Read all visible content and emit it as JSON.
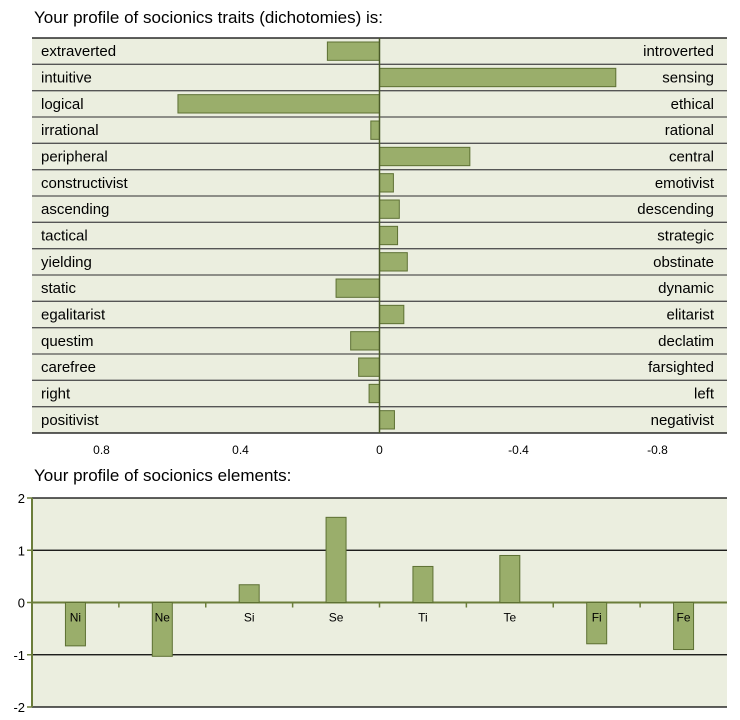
{
  "chart_data": [
    {
      "type": "bar",
      "orientation": "horizontal-diverging",
      "title": "Your profile of socionics traits (dichotomies) is:",
      "left_labels": [
        "extraverted",
        "intuitive",
        "logical",
        "irrational",
        "peripheral",
        "constructivist",
        "ascending",
        "tactical",
        "yielding",
        "static",
        "egalitarist",
        "questim",
        "carefree",
        "right",
        "positivist"
      ],
      "right_labels": [
        "introverted",
        "sensing",
        "ethical",
        "rational",
        "central",
        "emotivist",
        "descending",
        "strategic",
        "obstinate",
        "dynamic",
        "elitarist",
        "declatim",
        "farsighted",
        "left",
        "negativist"
      ],
      "values": [
        0.15,
        -0.68,
        0.58,
        0.025,
        -0.26,
        -0.04,
        -0.057,
        -0.052,
        -0.08,
        0.125,
        -0.07,
        0.083,
        0.06,
        0.03,
        -0.043
      ],
      "xlim": [
        1,
        -1
      ],
      "xticks": [
        0.8,
        0.4,
        0,
        -0.4,
        -0.8
      ],
      "xtick_labels": [
        "0.8",
        "0.4",
        "0",
        "-0.4",
        "-0.8"
      ]
    },
    {
      "type": "bar",
      "title": "Your profile of socionics elements:",
      "categories": [
        "Ni",
        "Ne",
        "Si",
        "Se",
        "Ti",
        "Te",
        "Fi",
        "Fe"
      ],
      "values": [
        -0.83,
        -1.03,
        0.34,
        1.63,
        0.69,
        0.9,
        -0.79,
        -0.9
      ],
      "ylim": [
        -2,
        2
      ],
      "yticks": [
        2,
        1,
        0,
        -1,
        -2
      ],
      "ytick_labels": [
        "2",
        "1",
        "0",
        "-1",
        "-2"
      ]
    }
  ],
  "colors": {
    "bar": "#9aae6b",
    "bar_border": "#5d7033",
    "plot_bg": "#ebeedf",
    "grid": "#000000"
  }
}
